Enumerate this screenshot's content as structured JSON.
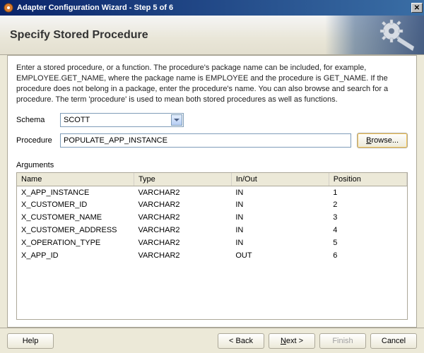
{
  "window": {
    "title": "Adapter Configuration Wizard - Step 5 of 6"
  },
  "header": {
    "title": "Specify Stored Procedure"
  },
  "instructions": "Enter a stored procedure, or a function. The procedure's package name can be included, for example, EMPLOYEE.GET_NAME, where the package name is EMPLOYEE and the procedure is GET_NAME.  If the procedure does not belong in a package, enter the procedure's name. You can also browse and search for a procedure. The term 'procedure' is used to mean both stored procedures as well as functions.",
  "form": {
    "schema_label": "Schema",
    "schema_value": "SCOTT",
    "procedure_label": "Procedure",
    "procedure_value": "POPULATE_APP_INSTANCE",
    "browse_label": "Browse..."
  },
  "arguments": {
    "section_label": "Arguments",
    "columns": [
      "Name",
      "Type",
      "In/Out",
      "Position"
    ],
    "rows": [
      [
        "X_APP_INSTANCE",
        "VARCHAR2",
        "IN",
        "1"
      ],
      [
        "X_CUSTOMER_ID",
        "VARCHAR2",
        "IN",
        "2"
      ],
      [
        "X_CUSTOMER_NAME",
        "VARCHAR2",
        "IN",
        "3"
      ],
      [
        "X_CUSTOMER_ADDRESS",
        "VARCHAR2",
        "IN",
        "4"
      ],
      [
        "X_OPERATION_TYPE",
        "VARCHAR2",
        "IN",
        "5"
      ],
      [
        "X_APP_ID",
        "VARCHAR2",
        "OUT",
        "6"
      ]
    ]
  },
  "footer": {
    "help": "Help",
    "back": "< Back",
    "next": "Next >",
    "finish": "Finish",
    "cancel": "Cancel"
  },
  "colors": {
    "dialog_bg": "#ece9d8",
    "border": "#aca899",
    "titlebar_left": "#0a246a",
    "titlebar_right": "#3a6ea5",
    "input_border": "#7f9db9"
  }
}
